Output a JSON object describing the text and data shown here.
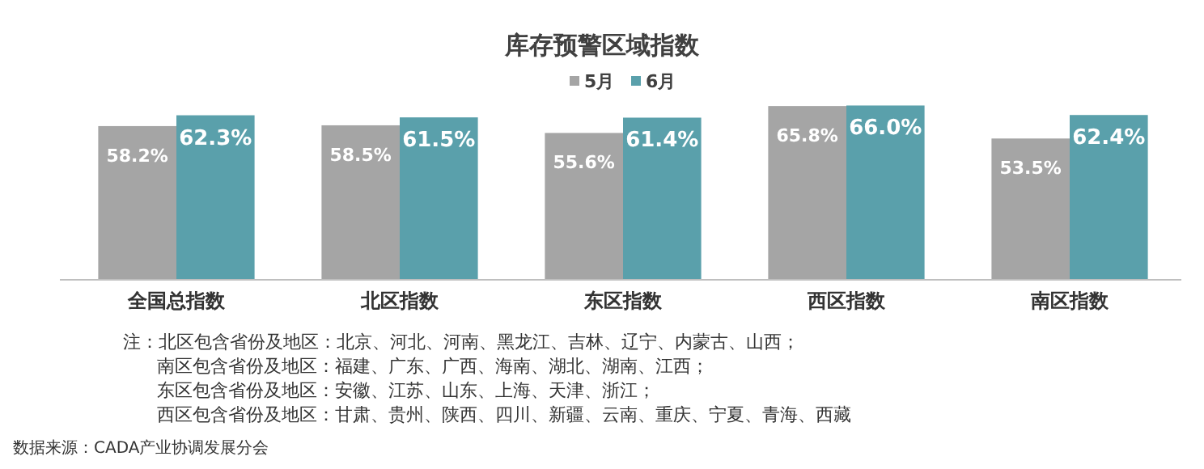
{
  "chart_data": {
    "type": "bar",
    "title": "库存预警区域指数",
    "categories": [
      "全国总指数",
      "北区指数",
      "东区指数",
      "西区指数",
      "南区指数"
    ],
    "series": [
      {
        "name": "5月",
        "color": "#a5a5a5",
        "values": [
          58.2,
          58.5,
          55.6,
          65.8,
          53.5
        ],
        "value_labels": [
          "58.2%",
          "58.5%",
          "55.6%",
          "65.8%",
          "53.5%"
        ]
      },
      {
        "name": "6月",
        "color": "#5aa0ab",
        "values": [
          62.3,
          61.5,
          61.4,
          66.0,
          62.4
        ],
        "value_labels": [
          "62.3%",
          "61.5%",
          "61.4%",
          "66.0%",
          "62.4%"
        ]
      }
    ],
    "legend": "top",
    "annotations": [
      "注：北区包含省份及地区：北京、河北、河南、黑龙江、吉林、辽宁、内蒙古、山西；",
      "南区包含省份及地区：福建、广东、广西、海南、湖北、湖南、江西；",
      "东区包含省份及地区：安徽、江苏、山东、上海、天津、浙江；",
      "西区包含省份及地区：甘肃、贵州、陕西、四川、新疆、云南、重庆、宁夏、青海、西藏",
      "数据来源：CADA产业协调发展分会"
    ]
  }
}
